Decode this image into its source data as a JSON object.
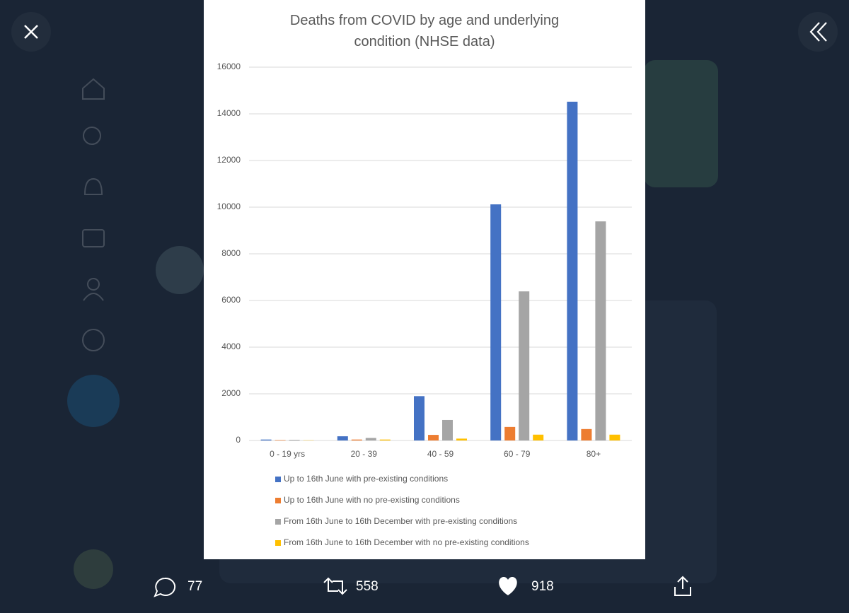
{
  "chart_data": {
    "type": "bar",
    "title": "Deaths from COVID by age and underlying condition (NHSE data)",
    "categories": [
      "0 - 19 yrs",
      "20 - 39",
      "40 - 59",
      "60 - 79",
      "80+"
    ],
    "series": [
      {
        "name": "Up to 16th June with pre-existing conditions",
        "color": "#4472c4",
        "values": [
          40,
          180,
          1900,
          10120,
          14520
        ]
      },
      {
        "name": "Up to 16th June with no pre-existing conditions",
        "color": "#ed7d31",
        "values": [
          20,
          40,
          240,
          580,
          490
        ]
      },
      {
        "name": "From 16th June to 16th December with pre-existing conditions",
        "color": "#a5a5a5",
        "values": [
          30,
          110,
          880,
          6390,
          9390
        ]
      },
      {
        "name": "From 16th June to 16th December with no pre-existing conditions",
        "color": "#ffc000",
        "values": [
          10,
          40,
          80,
          250,
          250
        ]
      }
    ],
    "ylim": [
      0,
      16000
    ],
    "yticks": [
      0,
      2000,
      4000,
      6000,
      8000,
      10000,
      12000,
      14000,
      16000
    ],
    "grid": true,
    "legend": "bottom"
  },
  "actions": {
    "replies": 77,
    "retweets": 558,
    "likes": 918
  }
}
